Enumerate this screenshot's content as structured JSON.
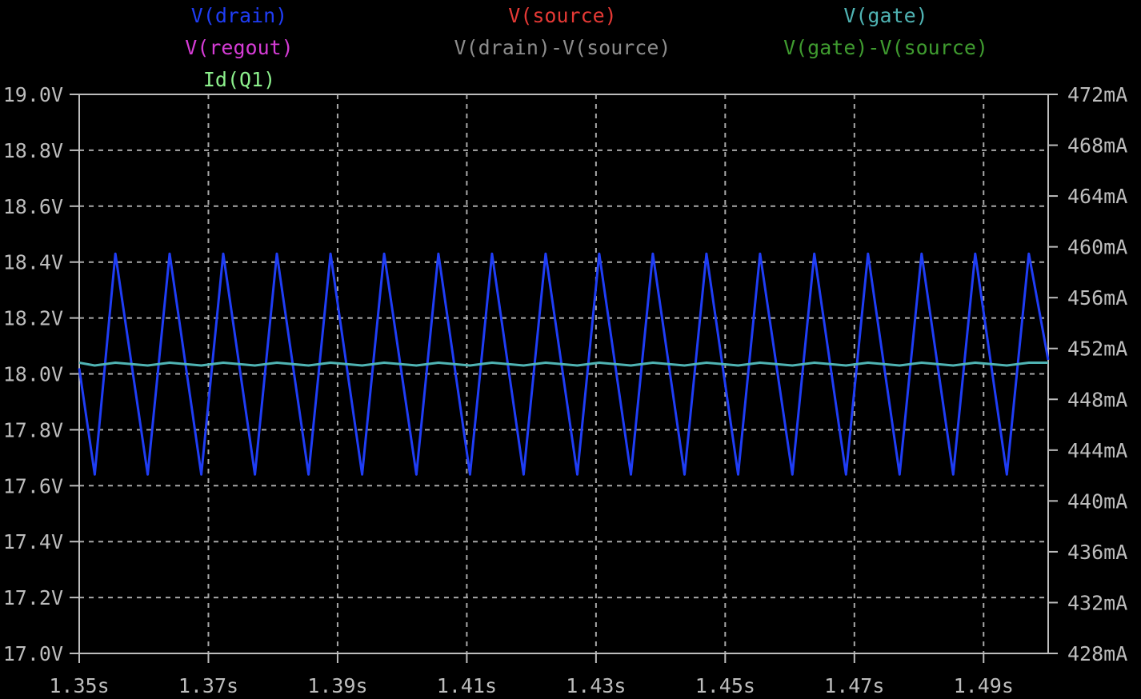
{
  "chart_data": {
    "type": "line",
    "legend": [
      {
        "name": "V(drain)",
        "color": "#1f3df5"
      },
      {
        "name": "V(source)",
        "color": "#e53935"
      },
      {
        "name": "V(gate)",
        "color": "#4fb3b3"
      },
      {
        "name": "V(regout)",
        "color": "#d63cd6"
      },
      {
        "name": "V(drain)-V(source)",
        "color": "#8c8c8c"
      },
      {
        "name": "V(gate)-V(source)",
        "color": "#3f9b2f"
      },
      {
        "name": "Id(Q1)",
        "color": "#8cf08c"
      }
    ],
    "x_range": [
      1.35,
      1.5
    ],
    "x_ticks": [
      "1.35s",
      "1.37s",
      "1.39s",
      "1.41s",
      "1.43s",
      "1.45s",
      "1.47s",
      "1.49s"
    ],
    "y_left_range": [
      17.0,
      19.0
    ],
    "y_left_ticks": [
      "17.0V",
      "17.2V",
      "17.4V",
      "17.6V",
      "17.8V",
      "18.0V",
      "18.2V",
      "18.4V",
      "18.6V",
      "18.8V",
      "19.0V"
    ],
    "y_right_range": [
      428,
      472
    ],
    "y_right_ticks": [
      "428mA",
      "432mA",
      "436mA",
      "440mA",
      "444mA",
      "448mA",
      "452mA",
      "456mA",
      "460mA",
      "464mA",
      "468mA",
      "472mA"
    ],
    "grid": true,
    "series": [
      {
        "name": "V(drain)",
        "color": "#1f3df5",
        "x": [
          1.35,
          1.3524,
          1.3556,
          1.3606,
          1.364,
          1.3689,
          1.3723,
          1.3772,
          1.3806,
          1.3855,
          1.3889,
          1.3938,
          1.3972,
          1.4022,
          1.4056,
          1.4105,
          1.4139,
          1.4188,
          1.4222,
          1.4271,
          1.4305,
          1.4354,
          1.4388,
          1.4437,
          1.4471,
          1.452,
          1.4554,
          1.4604,
          1.4638,
          1.4687,
          1.4721,
          1.477,
          1.4804,
          1.4853,
          1.4887,
          1.4936,
          1.497,
          1.5
        ],
        "y": [
          18.02,
          17.64,
          18.43,
          17.64,
          18.43,
          17.64,
          18.43,
          17.64,
          18.43,
          17.64,
          18.43,
          17.64,
          18.43,
          17.64,
          18.43,
          17.64,
          18.43,
          17.64,
          18.43,
          17.64,
          18.43,
          17.64,
          18.43,
          17.64,
          18.43,
          17.64,
          18.43,
          17.64,
          18.43,
          17.64,
          18.43,
          17.64,
          18.43,
          17.64,
          18.43,
          17.64,
          18.43,
          18.05
        ]
      },
      {
        "name": "V(gate)",
        "color": "#4fb3b3",
        "x": [
          1.35,
          1.3524,
          1.3556,
          1.3606,
          1.364,
          1.3689,
          1.3723,
          1.3772,
          1.3806,
          1.3855,
          1.3889,
          1.3938,
          1.3972,
          1.4022,
          1.4056,
          1.4105,
          1.4139,
          1.4188,
          1.4222,
          1.4271,
          1.4305,
          1.4354,
          1.4388,
          1.4437,
          1.4471,
          1.452,
          1.4554,
          1.4604,
          1.4638,
          1.4687,
          1.4721,
          1.477,
          1.4804,
          1.4853,
          1.4887,
          1.4936,
          1.497,
          1.5
        ],
        "y": [
          18.04,
          18.03,
          18.04,
          18.03,
          18.04,
          18.03,
          18.04,
          18.03,
          18.04,
          18.03,
          18.04,
          18.03,
          18.04,
          18.03,
          18.04,
          18.03,
          18.04,
          18.03,
          18.04,
          18.03,
          18.04,
          18.03,
          18.04,
          18.03,
          18.04,
          18.03,
          18.04,
          18.03,
          18.04,
          18.03,
          18.04,
          18.03,
          18.04,
          18.03,
          18.04,
          18.03,
          18.04,
          18.04
        ]
      }
    ]
  }
}
